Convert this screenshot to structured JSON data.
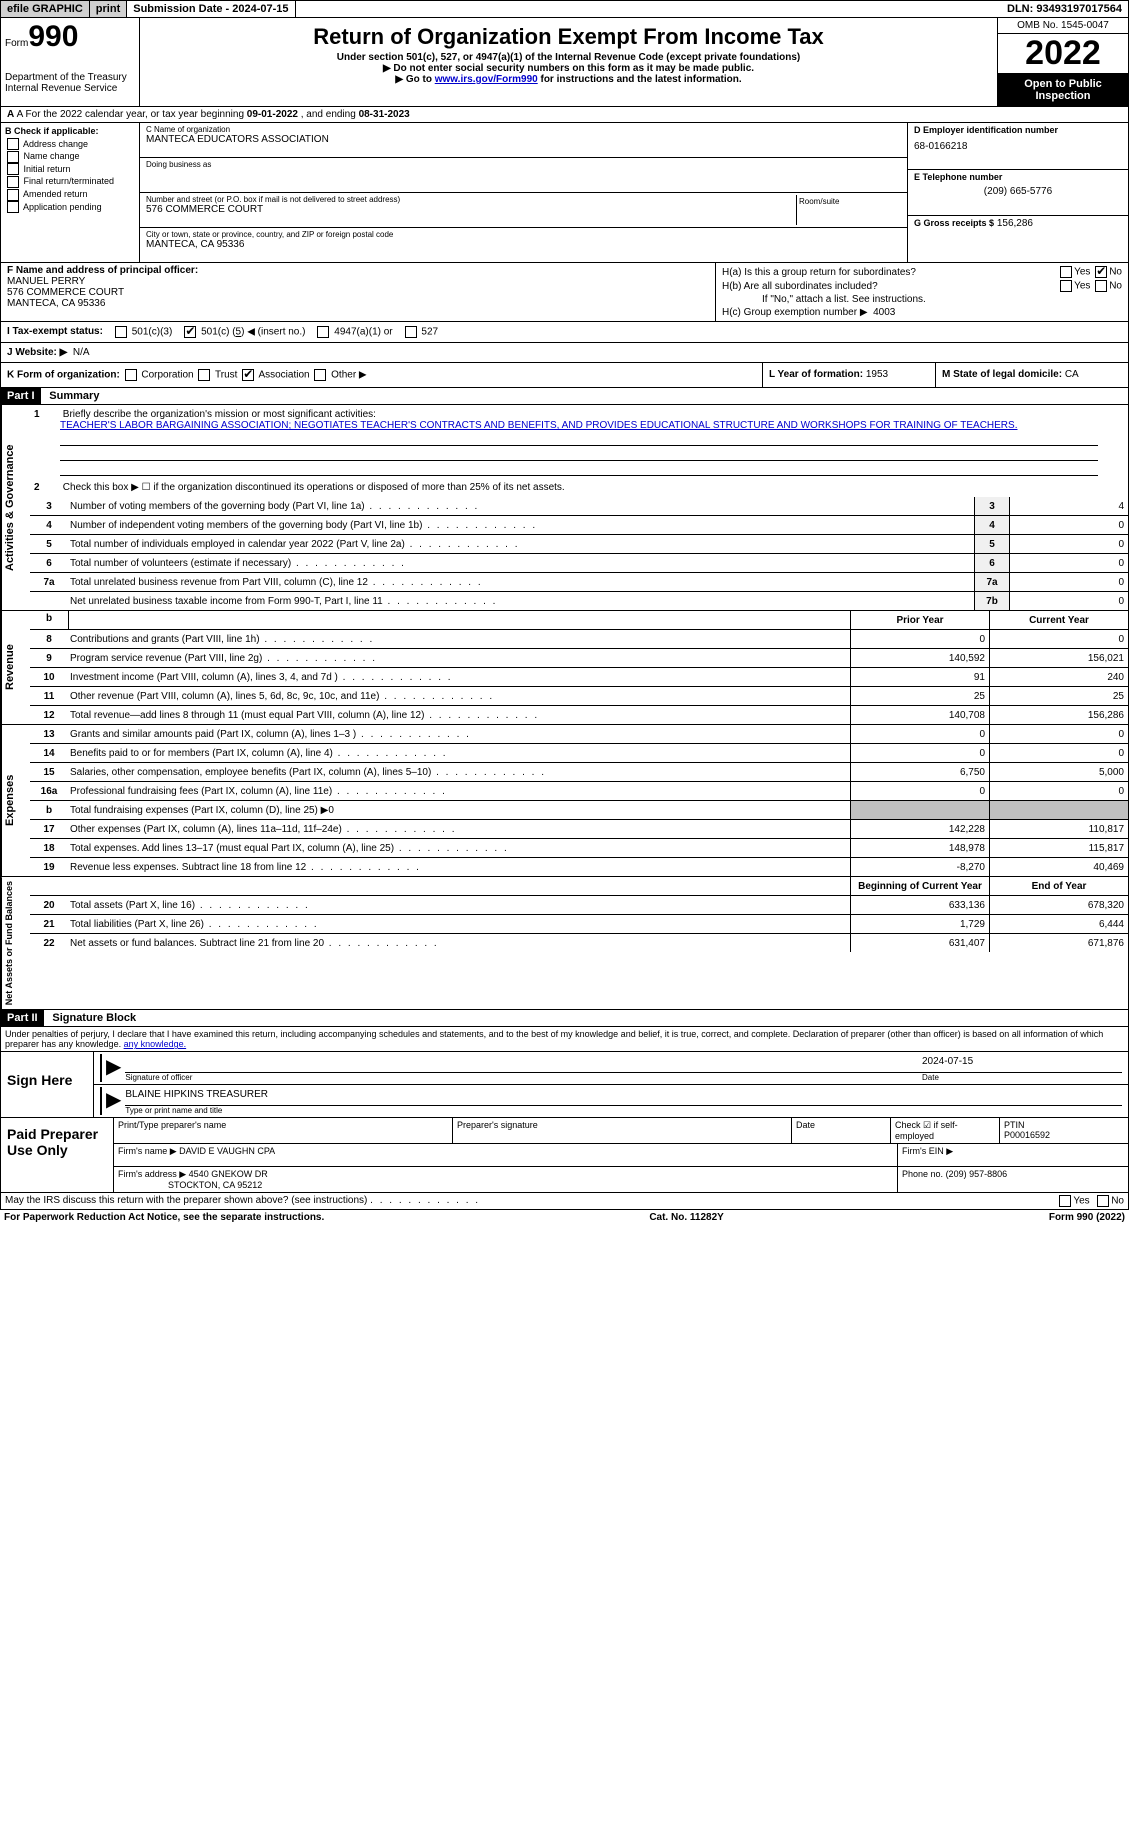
{
  "topbar": {
    "efile": "efile GRAPHIC",
    "print": "print",
    "submission": "Submission Date - 2024-07-15",
    "dln": "DLN: 93493197017564"
  },
  "header": {
    "form_label": "Form",
    "form_number": "990",
    "title": "Return of Organization Exempt From Income Tax",
    "sub1": "Under section 501(c), 527, or 4947(a)(1) of the Internal Revenue Code (except private foundations)",
    "sub2": "▶ Do not enter social security numbers on this form as it may be made public.",
    "sub3_prefix": "▶ Go to ",
    "sub3_link": "www.irs.gov/Form990",
    "sub3_suffix": " for instructions and the latest information.",
    "dept": "Department of the Treasury Internal Revenue Service",
    "omb": "OMB No. 1545-0047",
    "year": "2022",
    "inspection": "Open to Public Inspection"
  },
  "lineA": {
    "prefix": "A For the 2022 calendar year, or tax year beginning ",
    "begin": "09-01-2022",
    "mid": " , and ending ",
    "end": "08-31-2023"
  },
  "colB": {
    "label": "B Check if applicable:",
    "opt1": "Address change",
    "opt2": "Name change",
    "opt3": "Initial return",
    "opt4": "Final return/terminated",
    "opt5": "Amended return",
    "opt6": "Application pending"
  },
  "colC": {
    "name_label": "C Name of organization",
    "name": "MANTECA EDUCATORS ASSOCIATION",
    "dba_label": "Doing business as",
    "dba": "",
    "addr_label": "Number and street (or P.O. box if mail is not delivered to street address)",
    "addr": "576 COMMERCE COURT",
    "room_label": "Room/suite",
    "city_label": "City or town, state or province, country, and ZIP or foreign postal code",
    "city": "MANTECA, CA  95336"
  },
  "colD": {
    "ein_label": "D Employer identification number",
    "ein": "68-0166218",
    "phone_label": "E Telephone number",
    "phone": "(209) 665-5776",
    "gross_label": "G Gross receipts $",
    "gross": "156,286"
  },
  "colF": {
    "label": "F Name and address of principal officer:",
    "name": "MANUEL PERRY",
    "addr1": "576 COMMERCE COURT",
    "addr2": "MANTECA, CA  95336"
  },
  "colH": {
    "ha": "H(a)  Is this a group return for subordinates?",
    "hb": "H(b)  Are all subordinates included?",
    "hb_note": "If \"No,\" attach a list. See instructions.",
    "hc": "H(c)  Group exemption number ▶",
    "hc_val": "4003",
    "yes": "Yes",
    "no": "No"
  },
  "lineI": {
    "label": "I   Tax-exempt status:",
    "opt1": "501(c)(3)",
    "opt2_pre": "501(c) (",
    "opt2_val": "5",
    "opt2_suf": ") ◀ (insert no.)",
    "opt3": "4947(a)(1) or",
    "opt4": "527"
  },
  "lineJ": {
    "label": "J   Website: ▶",
    "value": "N/A"
  },
  "lineK": {
    "label": "K Form of organization:",
    "opt1": "Corporation",
    "opt2": "Trust",
    "opt3": "Association",
    "opt4": "Other ▶",
    "L_label": "L Year of formation:",
    "L_val": "1953",
    "M_label": "M State of legal domicile:",
    "M_val": "CA"
  },
  "part1": {
    "title": "Part I",
    "heading": "Summary",
    "q1_label": "1",
    "q1": "Briefly describe the organization's mission or most significant activities:",
    "q1_text": "TEACHER'S LABOR BARGAINING ASSOCIATION; NEGOTIATES TEACHER'S CONTRACTS AND BENEFITS, AND PROVIDES EDUCATIONAL STRUCTURE AND WORKSHOPS FOR TRAINING OF TEACHERS.",
    "q2": "Check this box ▶ ☐ if the organization discontinued its operations or disposed of more than 25% of its net assets.",
    "sideA": "Activities & Governance",
    "sideB": "Revenue",
    "sideC": "Expenses",
    "sideD": "Net Assets or Fund Balances",
    "prior": "Prior Year",
    "current": "Current Year",
    "begin": "Beginning of Current Year",
    "endYr": "End of Year",
    "rows_gov": [
      {
        "n": "3",
        "d": "Number of voting members of the governing body (Part VI, line 1a)",
        "box": "3",
        "v": "4"
      },
      {
        "n": "4",
        "d": "Number of independent voting members of the governing body (Part VI, line 1b)",
        "box": "4",
        "v": "0"
      },
      {
        "n": "5",
        "d": "Total number of individuals employed in calendar year 2022 (Part V, line 2a)",
        "box": "5",
        "v": "0"
      },
      {
        "n": "6",
        "d": "Total number of volunteers (estimate if necessary)",
        "box": "6",
        "v": "0"
      },
      {
        "n": "7a",
        "d": "Total unrelated business revenue from Part VIII, column (C), line 12",
        "box": "7a",
        "v": "0"
      },
      {
        "n": " ",
        "d": "Net unrelated business taxable income from Form 990-T, Part I, line 11",
        "box": "7b",
        "v": "0"
      }
    ],
    "rows_rev": [
      {
        "n": "8",
        "d": "Contributions and grants (Part VIII, line 1h)",
        "p": "0",
        "c": "0"
      },
      {
        "n": "9",
        "d": "Program service revenue (Part VIII, line 2g)",
        "p": "140,592",
        "c": "156,021"
      },
      {
        "n": "10",
        "d": "Investment income (Part VIII, column (A), lines 3, 4, and 7d )",
        "p": "91",
        "c": "240"
      },
      {
        "n": "11",
        "d": "Other revenue (Part VIII, column (A), lines 5, 6d, 8c, 9c, 10c, and 11e)",
        "p": "25",
        "c": "25"
      },
      {
        "n": "12",
        "d": "Total revenue—add lines 8 through 11 (must equal Part VIII, column (A), line 12)",
        "p": "140,708",
        "c": "156,286"
      }
    ],
    "rows_exp": [
      {
        "n": "13",
        "d": "Grants and similar amounts paid (Part IX, column (A), lines 1–3 )",
        "p": "0",
        "c": "0"
      },
      {
        "n": "14",
        "d": "Benefits paid to or for members (Part IX, column (A), line 4)",
        "p": "0",
        "c": "0"
      },
      {
        "n": "15",
        "d": "Salaries, other compensation, employee benefits (Part IX, column (A), lines 5–10)",
        "p": "6,750",
        "c": "5,000"
      },
      {
        "n": "16a",
        "d": "Professional fundraising fees (Part IX, column (A), line 11e)",
        "p": "0",
        "c": "0"
      },
      {
        "n": "b",
        "d": "Total fundraising expenses (Part IX, column (D), line 25) ▶0",
        "p": "",
        "c": "",
        "shaded": true
      },
      {
        "n": "17",
        "d": "Other expenses (Part IX, column (A), lines 11a–11d, 11f–24e)",
        "p": "142,228",
        "c": "110,817"
      },
      {
        "n": "18",
        "d": "Total expenses. Add lines 13–17 (must equal Part IX, column (A), line 25)",
        "p": "148,978",
        "c": "115,817"
      },
      {
        "n": "19",
        "d": "Revenue less expenses. Subtract line 18 from line 12",
        "p": "-8,270",
        "c": "40,469"
      }
    ],
    "rows_net": [
      {
        "n": "20",
        "d": "Total assets (Part X, line 16)",
        "p": "633,136",
        "c": "678,320"
      },
      {
        "n": "21",
        "d": "Total liabilities (Part X, line 26)",
        "p": "1,729",
        "c": "6,444"
      },
      {
        "n": "22",
        "d": "Net assets or fund balances. Subtract line 21 from line 20",
        "p": "631,407",
        "c": "671,876"
      }
    ]
  },
  "part2": {
    "title": "Part II",
    "heading": "Signature Block",
    "penalties": "Under penalties of perjury, I declare that I have examined this return, including accompanying schedules and statements, and to the best of my knowledge and belief, it is true, correct, and complete. Declaration of preparer (other than officer) is based on all information of which preparer has any knowledge.",
    "sign_here": "Sign Here",
    "sig_officer": "Signature of officer",
    "sig_date": "2024-07-15",
    "date_label": "Date",
    "officer_name": "BLAINE HIPKINS TREASURER",
    "name_label": "Type or print name and title",
    "paid_prep": "Paid Preparer Use Only",
    "prep_name_label": "Print/Type preparer's name",
    "prep_sig_label": "Preparer's signature",
    "check_label": "Check ☑ if self-employed",
    "ptin_label": "PTIN",
    "ptin": "P00016592",
    "firm_name_label": "Firm's name    ▶",
    "firm_name": "DAVID E VAUGHN CPA",
    "firm_ein_label": "Firm's EIN ▶",
    "firm_addr_label": "Firm's address ▶",
    "firm_addr1": "4540 GNEKOW DR",
    "firm_addr2": "STOCKTON, CA  95212",
    "phone_label": "Phone no.",
    "phone": "(209) 957-8806"
  },
  "footer": {
    "discuss": "May the IRS discuss this return with the preparer shown above? (see instructions)",
    "yes": "Yes",
    "no": "No",
    "paperwork": "For Paperwork Reduction Act Notice, see the separate instructions.",
    "cat": "Cat. No. 11282Y",
    "form": "Form 990 (2022)"
  }
}
